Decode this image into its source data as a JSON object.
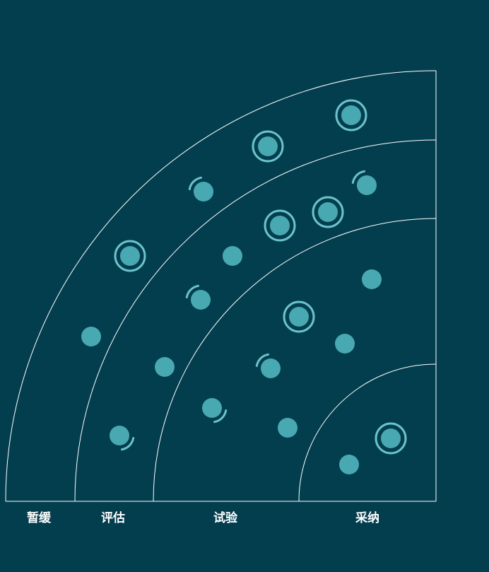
{
  "colors": {
    "background": "#033e4f",
    "line": "#ffffff",
    "blip": "#48a9b2",
    "blip_ring": "#6cc3ca"
  },
  "rings": [
    {
      "id": "hold",
      "label": "暂缓"
    },
    {
      "id": "assess",
      "label": "评估"
    },
    {
      "id": "trial",
      "label": "试验"
    },
    {
      "id": "adopt",
      "label": "采纳"
    }
  ],
  "blips": [
    {
      "ring": "hold",
      "shape": "new"
    },
    {
      "ring": "hold",
      "shape": "new"
    },
    {
      "ring": "hold",
      "shape": "new"
    },
    {
      "ring": "hold",
      "shape": "moved-in"
    },
    {
      "ring": "hold",
      "shape": "plain"
    },
    {
      "ring": "hold",
      "shape": "moved-out"
    },
    {
      "ring": "assess",
      "shape": "moved-in"
    },
    {
      "ring": "assess",
      "shape": "new"
    },
    {
      "ring": "assess",
      "shape": "new"
    },
    {
      "ring": "assess",
      "shape": "plain"
    },
    {
      "ring": "assess",
      "shape": "moved-in"
    },
    {
      "ring": "assess",
      "shape": "plain"
    },
    {
      "ring": "assess",
      "shape": "moved-out"
    },
    {
      "ring": "trial",
      "shape": "plain"
    },
    {
      "ring": "trial",
      "shape": "new"
    },
    {
      "ring": "trial",
      "shape": "plain"
    },
    {
      "ring": "trial",
      "shape": "moved-in"
    },
    {
      "ring": "trial",
      "shape": "plain"
    },
    {
      "ring": "adopt",
      "shape": "new"
    },
    {
      "ring": "adopt",
      "shape": "plain"
    }
  ]
}
